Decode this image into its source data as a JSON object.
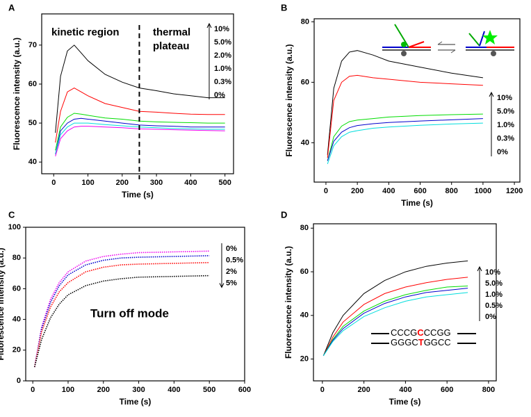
{
  "chart_data": [
    {
      "type": "line",
      "panel": "A",
      "xlabel": "Time (s)",
      "ylabel": "Fluorescence intensity (a.u.)",
      "x": [
        5,
        20,
        40,
        60,
        80,
        100,
        150,
        200,
        250,
        300,
        350,
        400,
        450,
        500
      ],
      "series": [
        {
          "name": "10%",
          "color": "#000000",
          "values": [
            47.5,
            62,
            68.5,
            70,
            68,
            66,
            62.5,
            60.5,
            59,
            58.3,
            57.5,
            57,
            56.5,
            56.5
          ]
        },
        {
          "name": "5.0%",
          "color": "#ff0000",
          "values": [
            45,
            53,
            58,
            59,
            58,
            57,
            55,
            54,
            53,
            52.8,
            52.5,
            52.3,
            52.2,
            52.2
          ]
        },
        {
          "name": "2.0%",
          "color": "#00dd00",
          "values": [
            43,
            49,
            51.5,
            52.5,
            52.3,
            52,
            51.3,
            51,
            50.5,
            50.3,
            50.2,
            50.1,
            50,
            50
          ]
        },
        {
          "name": "1.0%",
          "color": "#0000cc",
          "values": [
            42,
            48,
            50,
            51,
            51.2,
            51,
            50.5,
            50,
            49.5,
            49.3,
            49.2,
            49,
            49,
            49
          ]
        },
        {
          "name": "0.3%",
          "color": "#00dddd",
          "values": [
            42,
            47,
            49,
            50,
            50,
            50,
            49.6,
            49.3,
            49,
            48.8,
            48.6,
            48.5,
            48.4,
            48.4
          ]
        },
        {
          "name": "0%",
          "color": "#ee00ee",
          "values": [
            41.5,
            46,
            48,
            49,
            49.2,
            49.2,
            49,
            48.8,
            48.5,
            48.4,
            48.3,
            48.2,
            48.1,
            48
          ]
        }
      ],
      "xlim": [
        -35,
        525
      ],
      "ylim": [
        37,
        78
      ],
      "xticks": [
        0,
        100,
        200,
        300,
        400,
        500
      ],
      "yticks": [
        40,
        50,
        60,
        70
      ],
      "legend_arrow": "up",
      "vline": 250,
      "annotations": [
        "kinetic region",
        "thermal",
        "plateau"
      ]
    },
    {
      "type": "line",
      "panel": "B",
      "xlabel": "Time (s)",
      "ylabel": "Fluorescence intensity (a.u.)",
      "x": [
        10,
        50,
        100,
        150,
        200,
        300,
        400,
        600,
        800,
        1000
      ],
      "series": [
        {
          "name": "10%",
          "color": "#000000",
          "values": [
            36,
            58,
            67,
            70,
            70.5,
            69,
            67,
            65,
            63,
            61.5
          ]
        },
        {
          "name": "5.0%",
          "color": "#ff0000",
          "values": [
            35,
            54,
            60,
            62,
            62.3,
            61.5,
            61,
            60,
            59.5,
            59
          ]
        },
        {
          "name": "1.0%",
          "color": "#00dd00",
          "values": [
            34,
            42,
            45.5,
            47,
            47.5,
            48,
            48.5,
            49,
            49.3,
            49.5
          ]
        },
        {
          "name": "0.3%",
          "color": "#0000cc",
          "values": [
            34,
            40.5,
            43.5,
            45,
            45.7,
            46.3,
            46.7,
            47.2,
            47.6,
            48
          ]
        },
        {
          "name": "0%",
          "color": "#00dddd",
          "values": [
            33,
            39,
            42,
            43.5,
            44,
            44.8,
            45.2,
            45.8,
            46.2,
            46.5
          ]
        }
      ],
      "xlim": [
        -75,
        1235
      ],
      "ylim": [
        27,
        81
      ],
      "xticks": [
        0,
        200,
        400,
        600,
        800,
        1000,
        1200
      ],
      "yticks": [
        40,
        60,
        80
      ],
      "legend_arrow": "up"
    },
    {
      "type": "line",
      "panel": "C",
      "xlabel": "Time (s)",
      "ylabel": "Fluorescence intensity (a.u.)",
      "x": [
        5,
        25,
        50,
        75,
        100,
        150,
        200,
        250,
        300,
        400,
        500
      ],
      "series": [
        {
          "name": "0%",
          "color": "#ee00ee",
          "values": [
            9,
            35,
            53,
            64,
            71,
            78,
            81,
            82.5,
            83.5,
            84,
            84.5
          ]
        },
        {
          "name": "0.5%",
          "color": "#0000cc",
          "values": [
            9,
            34,
            51,
            62,
            69,
            75.5,
            78.5,
            80,
            80.5,
            81,
            81.5
          ]
        },
        {
          "name": "2%",
          "color": "#ff0000",
          "values": [
            9,
            32,
            48,
            58,
            64,
            71,
            74,
            75.5,
            76,
            76.5,
            77
          ]
        },
        {
          "name": "5%",
          "color": "#000000",
          "values": [
            9,
            27,
            41,
            50,
            56,
            62,
            65,
            66.5,
            67.5,
            68,
            68.5
          ]
        }
      ],
      "xlim": [
        -20,
        600
      ],
      "ylim": [
        0,
        100
      ],
      "xticks": [
        0,
        100,
        200,
        300,
        400,
        500,
        600
      ],
      "yticks": [
        0,
        20,
        40,
        60,
        80,
        100
      ],
      "legend_arrow": "down",
      "dotted": true,
      "annotations": [
        "Turn off mode"
      ]
    },
    {
      "type": "line",
      "panel": "D",
      "xlabel": "Time (s)",
      "ylabel": "Fluorescence intensity (a.u.)",
      "x": [
        5,
        50,
        100,
        200,
        300,
        400,
        500,
        600,
        700
      ],
      "series": [
        {
          "name": "10%",
          "color": "#000000",
          "values": [
            21.5,
            32,
            40,
            50,
            56,
            60,
            62.5,
            64,
            65
          ]
        },
        {
          "name": "5.0%",
          "color": "#ff0000",
          "values": [
            21.5,
            30,
            37,
            45,
            50,
            53,
            55,
            56.5,
            57.5
          ]
        },
        {
          "name": "1.0%",
          "color": "#00dd00",
          "values": [
            21.5,
            29,
            35,
            42,
            46.5,
            49.5,
            51.5,
            53,
            53.5
          ]
        },
        {
          "name": "0.5%",
          "color": "#0000cc",
          "values": [
            21.5,
            28.5,
            34,
            41,
            45.5,
            48.5,
            50.5,
            51.5,
            52.5
          ]
        },
        {
          "name": "0%",
          "color": "#00dddd",
          "values": [
            21.5,
            28,
            33,
            39.5,
            43.5,
            46.5,
            48.5,
            49.5,
            50.5
          ]
        }
      ],
      "xlim": [
        -43,
        837
      ],
      "ylim": [
        10,
        82
      ],
      "xticks": [
        0,
        200,
        400,
        600,
        800
      ],
      "yticks": [
        20,
        40,
        60,
        80
      ],
      "legend_arrow": "up",
      "sequence_top": [
        "CCCG",
        "C",
        "CCGG"
      ],
      "sequence_bottom": [
        "GGGC",
        "T",
        "GGCC"
      ],
      "highlight_color": "#ff0000"
    }
  ]
}
